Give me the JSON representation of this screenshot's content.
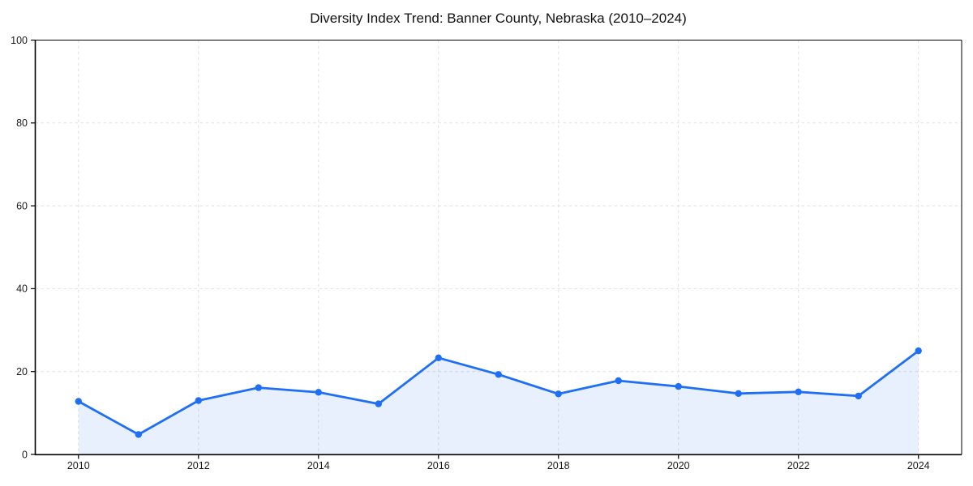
{
  "chart_data": {
    "type": "line",
    "title": "Diversity Index Trend: Banner County, Nebraska (2010–2024)",
    "x": [
      2010,
      2011,
      2012,
      2013,
      2014,
      2015,
      2016,
      2017,
      2018,
      2019,
      2020,
      2021,
      2022,
      2023,
      2024
    ],
    "series": [
      {
        "name": "Diversity Index",
        "values": [
          12.8,
          4.8,
          13.0,
          16.1,
          15.0,
          12.2,
          23.3,
          19.3,
          14.6,
          17.8,
          16.4,
          14.7,
          15.1,
          14.1,
          25.0
        ]
      }
    ],
    "xlabel": "",
    "ylabel": "",
    "xticks": [
      2010,
      2012,
      2014,
      2016,
      2018,
      2020,
      2022,
      2024
    ],
    "yticks": [
      0,
      20,
      40,
      60,
      80,
      100
    ],
    "xlim": [
      2009.28,
      2024.72
    ],
    "ylim": [
      0,
      100
    ],
    "grid": "dashed",
    "legend": "none",
    "marker": "circle",
    "area_fill": true,
    "colors": {
      "line": "#1e6ff5",
      "marker": "#1e6ff5",
      "fill": "rgba(30,111,245,0.10)",
      "grid": "#e0e0e0",
      "spine": "#000000",
      "tick_text": "#1a1a1a",
      "background": "#ffffff"
    }
  }
}
